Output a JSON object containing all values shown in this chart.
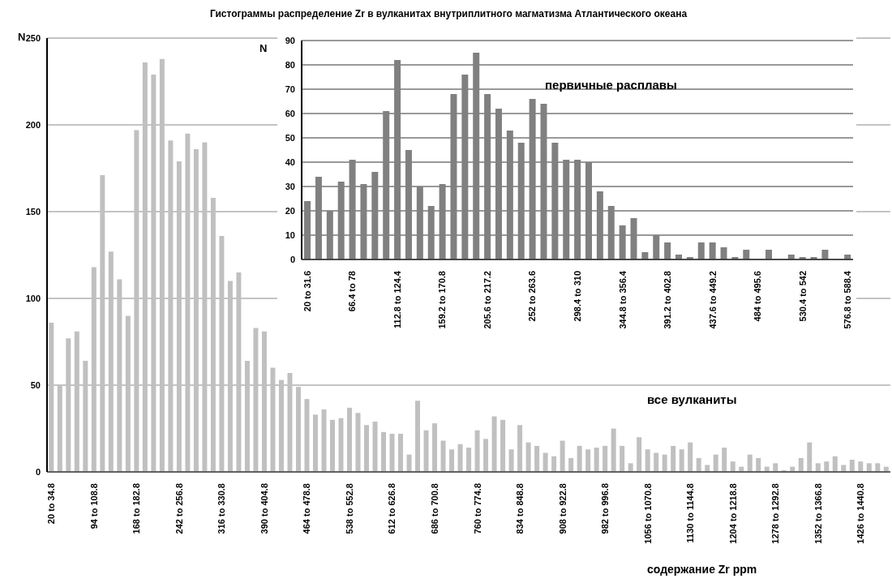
{
  "chart_data": [
    {
      "type": "bar",
      "title": "Гистограммы распределение Zr в вулканитах внутриплитного магматизма Атлантического океана",
      "ylabel": "N",
      "xlabel": "содержание Zr ppm",
      "categories": [
        "20 to 34.8",
        null,
        null,
        null,
        null,
        "94 to 108.8",
        null,
        null,
        null,
        null,
        "168 to 182.8",
        null,
        null,
        null,
        null,
        "242 to 256.8",
        null,
        null,
        null,
        null,
        "316 to 330.8",
        null,
        null,
        null,
        null,
        "390 to 404.8",
        null,
        null,
        null,
        null,
        "464 to 478.8",
        null,
        null,
        null,
        null,
        "538 to 552.8",
        null,
        null,
        null,
        null,
        "612 to 626.8",
        null,
        null,
        null,
        null,
        "686 to 700.8",
        null,
        null,
        null,
        null,
        "760 to 774.8",
        null,
        null,
        null,
        null,
        "834 to 848.8",
        null,
        null,
        null,
        null,
        "908 to 922.8",
        null,
        null,
        null,
        null,
        "982 to 996.8",
        null,
        null,
        null,
        null,
        "1056 to 1070.8",
        null,
        null,
        null,
        null,
        "1130 to 1144.8",
        null,
        null,
        null,
        null,
        "1204 to 1218.8",
        null,
        null,
        null,
        null,
        "1278 to 1292.8",
        null,
        null,
        null,
        null,
        "1352 to 1366.8",
        null,
        null,
        null,
        null,
        "1426 to 1440.8",
        null,
        null,
        null
      ],
      "values": [
        86,
        50,
        77,
        81,
        64,
        118,
        171,
        127,
        111,
        90,
        197,
        236,
        229,
        238,
        191,
        179,
        195,
        186,
        190,
        158,
        136,
        110,
        115,
        64,
        83,
        81,
        60,
        53,
        57,
        49,
        42,
        33,
        36,
        30,
        31,
        37,
        34,
        27,
        29,
        23,
        22,
        22,
        10,
        41,
        24,
        28,
        18,
        13,
        16,
        14,
        24,
        19,
        32,
        30,
        13,
        27,
        17,
        15,
        11,
        9,
        18,
        8,
        15,
        13,
        14,
        15,
        25,
        15,
        5,
        20,
        13,
        11,
        10,
        15,
        13,
        17,
        8,
        4,
        10,
        14,
        6,
        3,
        10,
        8,
        3,
        5,
        1,
        3,
        8,
        17,
        5,
        6,
        9,
        4,
        7,
        6,
        5,
        5,
        3
      ],
      "color": "#c0c0c0",
      "ylim": [
        0,
        250
      ],
      "yticks": [
        0,
        50,
        100,
        150,
        200,
        250
      ],
      "grid": "y",
      "annotations": [
        "все вулканиты"
      ]
    },
    {
      "type": "bar",
      "ylabel": "N",
      "categories": [
        "20 to 31.6",
        null,
        null,
        null,
        "66.4 to 78",
        null,
        null,
        null,
        "112.8 to 124.4",
        null,
        null,
        null,
        "159.2 to 170.8",
        null,
        null,
        null,
        "205.6 to 217.2",
        null,
        null,
        null,
        "252 to 263.6",
        null,
        null,
        null,
        "298.4 to 310",
        null,
        null,
        null,
        "344.8 to 356.4",
        null,
        null,
        null,
        "391.2 to 402.8",
        null,
        null,
        null,
        "437.6 to 449.2",
        null,
        null,
        null,
        "484 to 495.6",
        null,
        null,
        null,
        "530.4 to 542",
        null,
        null,
        null,
        "576.8 to 588.4"
      ],
      "values": [
        24,
        34,
        20,
        32,
        41,
        31,
        36,
        61,
        82,
        45,
        30,
        22,
        31,
        68,
        76,
        85,
        68,
        62,
        53,
        48,
        66,
        64,
        48,
        41,
        41,
        40,
        28,
        22,
        14,
        17,
        3,
        10,
        7,
        2,
        1,
        7,
        7,
        5,
        1,
        4,
        0,
        4,
        0,
        2,
        1,
        1,
        4,
        0,
        2
      ],
      "color": "#808080",
      "ylim": [
        0,
        90
      ],
      "yticks": [
        0,
        10,
        20,
        30,
        40,
        50,
        60,
        70,
        80,
        90
      ],
      "grid": "y",
      "annotations": [
        "первичные расплавы"
      ]
    }
  ]
}
